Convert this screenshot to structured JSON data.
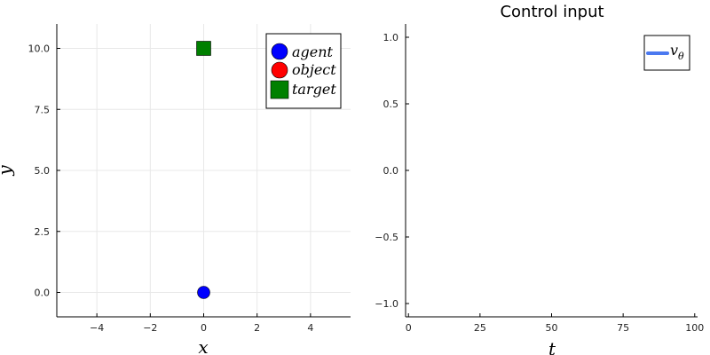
{
  "chart_data": [
    {
      "type": "scatter",
      "title": "",
      "xlabel": "x",
      "ylabel": "y",
      "xlim": [
        -5.5,
        5.5
      ],
      "ylim": [
        -1,
        11
      ],
      "xticks": [
        -4,
        -2,
        0,
        2,
        4
      ],
      "xtick_labels": [
        "−4",
        "−2",
        "0",
        "2",
        "4"
      ],
      "yticks": [
        0,
        2.5,
        5,
        7.5,
        10
      ],
      "ytick_labels": [
        "0.0",
        "2.5",
        "5.0",
        "7.5",
        "10.0"
      ],
      "grid": true,
      "legend_position": "top-right",
      "series": [
        {
          "name": "agent",
          "marker": "circle",
          "color": "#0000ff",
          "points": [
            [
              0,
              0
            ]
          ]
        },
        {
          "name": "object",
          "marker": "circle",
          "color": "#ff0000",
          "points": []
        },
        {
          "name": "target",
          "marker": "square",
          "color": "#008000",
          "points": [
            [
              0,
              10
            ]
          ]
        }
      ]
    },
    {
      "type": "line",
      "title": "Control input",
      "xlabel": "t",
      "ylabel": "",
      "xlim": [
        -1,
        101
      ],
      "ylim": [
        -1.1,
        1.1
      ],
      "xticks": [
        0,
        25,
        50,
        75,
        100
      ],
      "xtick_labels": [
        "0",
        "25",
        "50",
        "75",
        "100"
      ],
      "yticks": [
        -1,
        -0.5,
        0,
        0.5,
        1
      ],
      "ytick_labels": [
        "−1.0",
        "−0.5",
        "0.0",
        "0.5",
        "1.0"
      ],
      "grid": false,
      "legend_position": "top-right",
      "series": [
        {
          "name": "v",
          "subscript": "θ",
          "color": "#4b79f0",
          "points": []
        }
      ]
    }
  ]
}
